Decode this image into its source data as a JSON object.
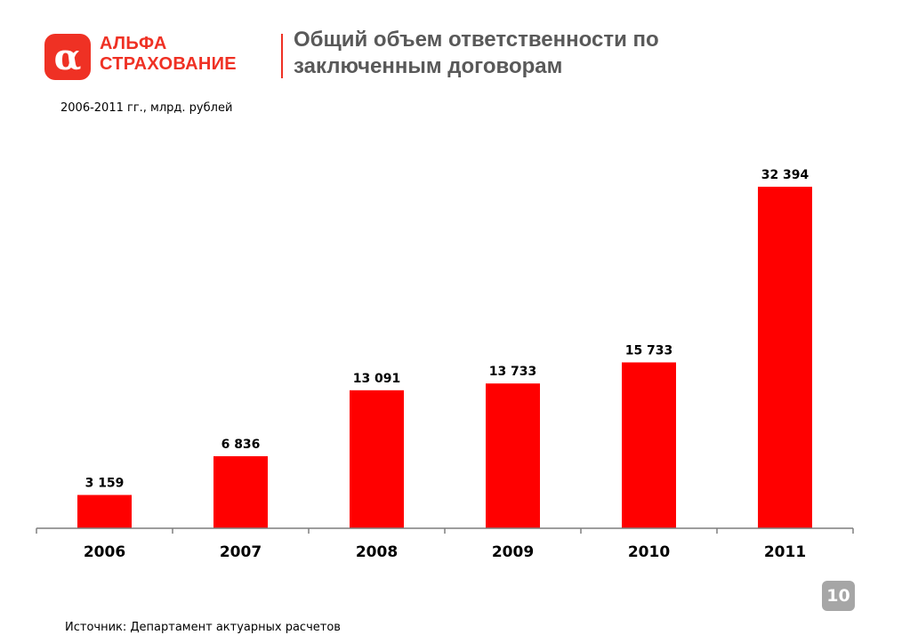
{
  "brand": {
    "line1": "АЛЬФА",
    "line2": "СТРАХОВАНИЕ",
    "mark": "α",
    "color": "#EF3124"
  },
  "header": {
    "title_line1": "Общий объем ответственности по",
    "title_line2": "заключенным договорам"
  },
  "subtitle": "2006-2011 гг., млрд. рублей",
  "chart_data": {
    "type": "bar",
    "categories": [
      "2006",
      "2007",
      "2008",
      "2009",
      "2010",
      "2011"
    ],
    "values": [
      3159,
      6836,
      13091,
      13733,
      15733,
      32394
    ],
    "value_labels": [
      "3 159",
      "6 836",
      "13 091",
      "13 733",
      "15 733",
      "32 394"
    ],
    "ylim": [
      0,
      34500
    ],
    "bar_color": "#FF0000",
    "grid": false,
    "legend": "none"
  },
  "footer": {
    "source": "Источник: Департамент актуарных расчетов",
    "page_number": "10"
  }
}
